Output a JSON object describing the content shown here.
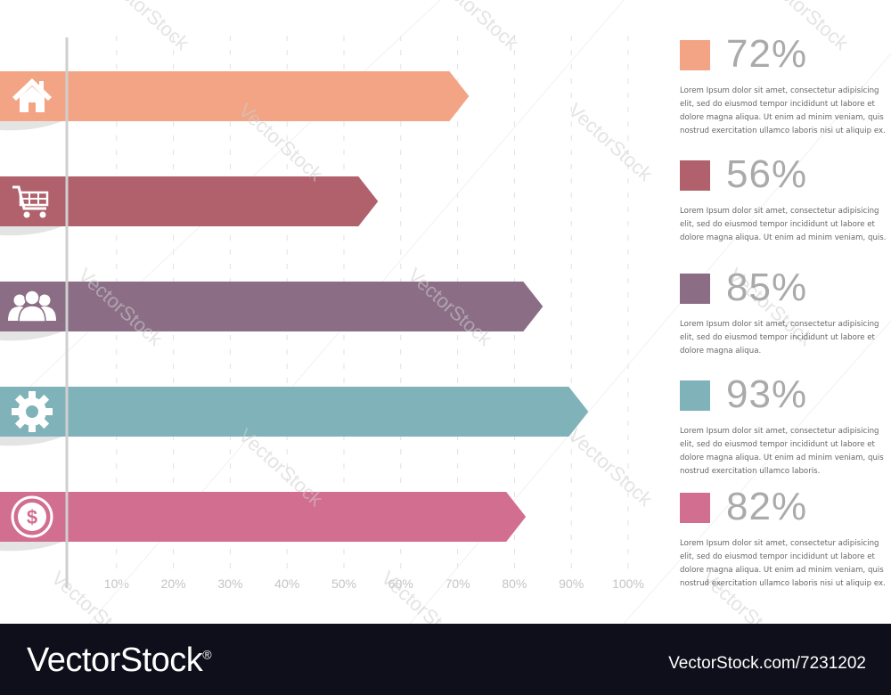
{
  "chart_data": {
    "type": "bar",
    "orientation": "horizontal",
    "categories": [
      "home",
      "shopping",
      "people",
      "settings",
      "money"
    ],
    "values": [
      72,
      56,
      85,
      93,
      82
    ],
    "colors": [
      "#f2a484",
      "#b0616b",
      "#8b6d85",
      "#7fb3b9",
      "#d26e90"
    ],
    "icons": [
      "home-icon",
      "cart-icon",
      "people-icon",
      "gear-icon",
      "dollar-icon"
    ],
    "xlim": [
      0,
      100
    ],
    "x_ticks": [
      "10%",
      "20%",
      "30%",
      "40%",
      "50%",
      "60%",
      "70%",
      "80%",
      "90%",
      "100%"
    ],
    "grid": true,
    "legend": "right"
  },
  "legend": [
    {
      "label": "72%",
      "color": "#f2a484",
      "text": "Lorem Ipsum dolor sit amet, consectetur adipisicing\nelit, sed do eiusmod tempor incididunt ut labore et\ndolore magna aliqua. Ut enim ad minim veniam, quis\nnostrud exercitation ullamco laboris nisi ut aliquip ex."
    },
    {
      "label": "56%",
      "color": "#b0616b",
      "text": "Lorem Ipsum dolor sit amet, consectetur adipisicing\nelit, sed do eiusmod tempor incididunt ut labore et\ndolore magna aliqua. Ut enim ad minim veniam, quis."
    },
    {
      "label": "85%",
      "color": "#8b6d85",
      "text": "Lorem Ipsum dolor sit amet, consectetur adipisicing\nelit, sed do eiusmod tempor incididunt ut labore et\ndolore magna aliqua."
    },
    {
      "label": "93%",
      "color": "#7fb3b9",
      "text": "Lorem Ipsum dolor sit amet, consectetur adipisicing\nelit, sed do eiusmod tempor incididunt ut labore et\ndolore magna aliqua. Ut enim ad minim veniam, quis\nnostrud exercitation ullamco laboris."
    },
    {
      "label": "82%",
      "color": "#d26e90",
      "text": "Lorem Ipsum dolor sit amet, consectetur adipisicing\nelit, sed do eiusmod tempor incididunt ut labore et\ndolore magna aliqua. Ut enim ad minim veniam, quis\nnostrud exercitation ullamco laboris nisi ut aliquip ex."
    }
  ],
  "watermark": "VectorStock",
  "footer": {
    "brand": "VectorStock",
    "registered": "®",
    "image_id": "VectorStock.com/7231202"
  }
}
